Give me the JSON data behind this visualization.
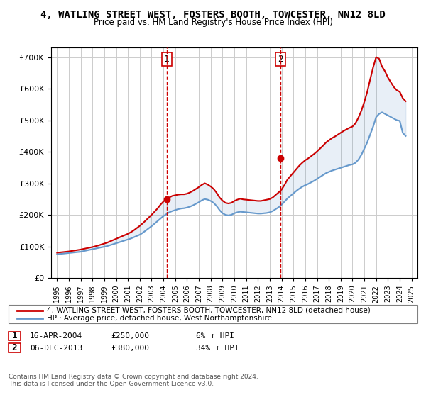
{
  "title": "4, WATLING STREET WEST, FOSTERS BOOTH, TOWCESTER, NN12 8LD",
  "subtitle": "Price paid vs. HM Land Registry's House Price Index (HPI)",
  "legend_line1": "4, WATLING STREET WEST, FOSTERS BOOTH, TOWCESTER, NN12 8LD (detached house)",
  "legend_line2": "HPI: Average price, detached house, West Northamptonshire",
  "sale1_label": "1",
  "sale1_date": "16-APR-2004",
  "sale1_price": "£250,000",
  "sale1_hpi": "6% ↑ HPI",
  "sale1_year": 2004.29,
  "sale1_value": 250000,
  "sale2_label": "2",
  "sale2_date": "06-DEC-2013",
  "sale2_price": "£380,000",
  "sale2_hpi": "34% ↑ HPI",
  "sale2_year": 2013.92,
  "sale2_value": 380000,
  "red_color": "#cc0000",
  "blue_color": "#6699cc",
  "dashed_color": "#cc0000",
  "background_color": "#ffffff",
  "grid_color": "#cccccc",
  "ylim": [
    0,
    730000
  ],
  "xlim_start": 1994.5,
  "xlim_end": 2025.5,
  "footer": "Contains HM Land Registry data © Crown copyright and database right 2024.\nThis data is licensed under the Open Government Licence v3.0.",
  "hpi_years": [
    1995,
    1995.25,
    1995.5,
    1995.75,
    1996,
    1996.25,
    1996.5,
    1996.75,
    1997,
    1997.25,
    1997.5,
    1997.75,
    1998,
    1998.25,
    1998.5,
    1998.75,
    1999,
    1999.25,
    1999.5,
    1999.75,
    2000,
    2000.25,
    2000.5,
    2000.75,
    2001,
    2001.25,
    2001.5,
    2001.75,
    2002,
    2002.25,
    2002.5,
    2002.75,
    2003,
    2003.25,
    2003.5,
    2003.75,
    2004,
    2004.25,
    2004.5,
    2004.75,
    2005,
    2005.25,
    2005.5,
    2005.75,
    2006,
    2006.25,
    2006.5,
    2006.75,
    2007,
    2007.25,
    2007.5,
    2007.75,
    2008,
    2008.25,
    2008.5,
    2008.75,
    2009,
    2009.25,
    2009.5,
    2009.75,
    2010,
    2010.25,
    2010.5,
    2010.75,
    2011,
    2011.25,
    2011.5,
    2011.75,
    2012,
    2012.25,
    2012.5,
    2012.75,
    2013,
    2013.25,
    2013.5,
    2013.75,
    2014,
    2014.25,
    2014.5,
    2014.75,
    2015,
    2015.25,
    2015.5,
    2015.75,
    2016,
    2016.25,
    2016.5,
    2016.75,
    2017,
    2017.25,
    2017.5,
    2017.75,
    2018,
    2018.25,
    2018.5,
    2018.75,
    2019,
    2019.25,
    2019.5,
    2019.75,
    2020,
    2020.25,
    2020.5,
    2020.75,
    2021,
    2021.25,
    2021.5,
    2021.75,
    2022,
    2022.25,
    2022.5,
    2022.75,
    2023,
    2023.25,
    2023.5,
    2023.75,
    2024,
    2024.25,
    2024.5
  ],
  "hpi_values": [
    75000,
    76000,
    77000,
    78000,
    79000,
    80000,
    81000,
    82000,
    83000,
    85000,
    87000,
    89000,
    91000,
    93000,
    95000,
    97000,
    99000,
    101000,
    104000,
    107000,
    110000,
    113000,
    116000,
    119000,
    122000,
    125000,
    129000,
    133000,
    137000,
    143000,
    150000,
    157000,
    164000,
    172000,
    180000,
    188000,
    196000,
    202000,
    208000,
    212000,
    215000,
    218000,
    220000,
    221000,
    223000,
    226000,
    230000,
    235000,
    240000,
    246000,
    250000,
    248000,
    244000,
    238000,
    228000,
    215000,
    205000,
    200000,
    198000,
    200000,
    205000,
    208000,
    210000,
    209000,
    208000,
    207000,
    206000,
    205000,
    204000,
    204000,
    205000,
    206000,
    208000,
    212000,
    218000,
    224000,
    232000,
    242000,
    252000,
    260000,
    268000,
    276000,
    283000,
    289000,
    294000,
    298000,
    303000,
    308000,
    314000,
    320000,
    326000,
    332000,
    336000,
    340000,
    343000,
    346000,
    349000,
    352000,
    355000,
    358000,
    360000,
    365000,
    375000,
    390000,
    410000,
    430000,
    455000,
    480000,
    510000,
    520000,
    525000,
    520000,
    515000,
    510000,
    505000,
    500000,
    498000,
    460000,
    450000
  ],
  "red_years": [
    1995,
    1995.25,
    1995.5,
    1995.75,
    1996,
    1996.25,
    1996.5,
    1996.75,
    1997,
    1997.25,
    1997.5,
    1997.75,
    1998,
    1998.25,
    1998.5,
    1998.75,
    1999,
    1999.25,
    1999.5,
    1999.75,
    2000,
    2000.25,
    2000.5,
    2000.75,
    2001,
    2001.25,
    2001.5,
    2001.75,
    2002,
    2002.25,
    2002.5,
    2002.75,
    2003,
    2003.25,
    2003.5,
    2003.75,
    2004,
    2004.25,
    2004.5,
    2004.75,
    2005,
    2005.25,
    2005.5,
    2005.75,
    2006,
    2006.25,
    2006.5,
    2006.75,
    2007,
    2007.25,
    2007.5,
    2007.75,
    2008,
    2008.25,
    2008.5,
    2008.75,
    2009,
    2009.25,
    2009.5,
    2009.75,
    2010,
    2010.25,
    2010.5,
    2010.75,
    2011,
    2011.25,
    2011.5,
    2011.75,
    2012,
    2012.25,
    2012.5,
    2012.75,
    2013,
    2013.25,
    2013.5,
    2013.75,
    2014,
    2014.25,
    2014.5,
    2014.75,
    2015,
    2015.25,
    2015.5,
    2015.75,
    2016,
    2016.25,
    2016.5,
    2016.75,
    2017,
    2017.25,
    2017.5,
    2017.75,
    2018,
    2018.25,
    2018.5,
    2018.75,
    2019,
    2019.25,
    2019.5,
    2019.75,
    2020,
    2020.25,
    2020.5,
    2020.75,
    2021,
    2021.25,
    2021.5,
    2021.75,
    2022,
    2022.25,
    2022.5,
    2022.75,
    2023,
    2023.25,
    2023.5,
    2023.75,
    2024,
    2024.25,
    2024.5
  ],
  "red_values": [
    80000,
    81000,
    82000,
    83000,
    84000,
    85500,
    87000,
    88500,
    90000,
    92000,
    94000,
    96000,
    98000,
    100500,
    103000,
    106000,
    109000,
    112000,
    116000,
    120000,
    124000,
    128000,
    132000,
    136000,
    140000,
    145000,
    151000,
    158000,
    165000,
    173000,
    182000,
    191000,
    200000,
    210000,
    220000,
    232000,
    242000,
    250000,
    255000,
    260000,
    262000,
    264000,
    265000,
    265000,
    267000,
    271000,
    276000,
    282000,
    288000,
    295000,
    300000,
    296000,
    290000,
    282000,
    270000,
    255000,
    245000,
    238000,
    236000,
    238000,
    244000,
    248000,
    251000,
    249000,
    248000,
    247000,
    246000,
    245000,
    244000,
    244000,
    246000,
    248000,
    250000,
    255000,
    263000,
    271000,
    280000,
    295000,
    312000,
    323000,
    334000,
    345000,
    356000,
    365000,
    373000,
    379000,
    386000,
    393000,
    401000,
    410000,
    419000,
    429000,
    436000,
    443000,
    448000,
    454000,
    460000,
    466000,
    471000,
    476000,
    480000,
    490000,
    508000,
    530000,
    558000,
    590000,
    630000,
    668000,
    700000,
    695000,
    670000,
    655000,
    635000,
    620000,
    605000,
    595000,
    590000,
    570000,
    560000
  ]
}
